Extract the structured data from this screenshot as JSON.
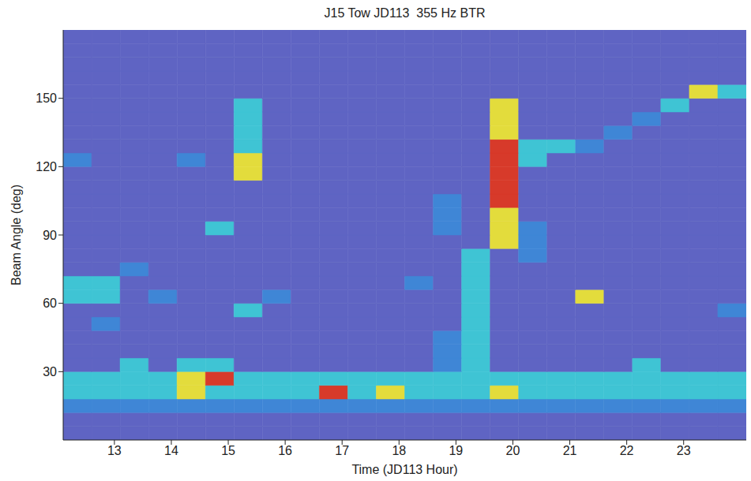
{
  "chart_data": {
    "type": "heatmap",
    "title": "J15 Tow JD113  355 Hz BTR",
    "x_label": "Time (JD113 Hour)",
    "y_label": "Beam Angle (deg)",
    "xlim": [
      12.1,
      24.1
    ],
    "xticks": [
      13,
      14,
      15,
      16,
      17,
      18,
      19,
      20,
      21,
      22,
      23
    ],
    "ylim": [
      0,
      180
    ],
    "yticks": [
      30,
      60,
      90,
      120,
      150
    ],
    "grid": false,
    "colors": [
      "#5f64c3",
      "#3f86d6",
      "#3fc4d4",
      "#e3dc3c",
      "#d73a2a"
    ],
    "x_bins": [
      12.1,
      12.6,
      13.1,
      13.6,
      14.1,
      14.6,
      15.1,
      15.6,
      16.1,
      16.6,
      17.1,
      17.6,
      18.1,
      18.6,
      19.1,
      19.6,
      20.1,
      20.6,
      21.1,
      21.6,
      22.1,
      22.6,
      23.1,
      23.6,
      24.1
    ],
    "y_bins": [
      0,
      6,
      12,
      18,
      24,
      30,
      36,
      42,
      48,
      54,
      60,
      66,
      72,
      78,
      84,
      90,
      96,
      102,
      108,
      114,
      120,
      126,
      132,
      138,
      144,
      150,
      156,
      162,
      168,
      174,
      180
    ],
    "cells": [
      [
        0,
        0,
        0,
        0,
        0,
        0,
        0,
        0,
        0,
        0,
        0,
        0,
        0,
        0,
        0,
        0,
        0,
        0,
        0,
        0,
        0,
        0,
        0,
        0
      ],
      [
        0,
        0,
        0,
        0,
        0,
        0,
        0,
        0,
        0,
        0,
        0,
        0,
        0,
        0,
        0,
        0,
        0,
        0,
        0,
        0,
        0,
        0,
        0,
        0
      ],
      [
        1,
        1,
        1,
        1,
        1,
        1,
        1,
        1,
        1,
        1,
        1,
        1,
        1,
        1,
        1,
        1,
        1,
        1,
        1,
        1,
        1,
        1,
        1,
        1
      ],
      [
        2,
        2,
        2,
        2,
        3,
        2,
        2,
        2,
        2,
        4,
        2,
        3,
        2,
        2,
        2,
        3,
        2,
        2,
        2,
        2,
        2,
        2,
        2,
        2
      ],
      [
        2,
        2,
        2,
        2,
        3,
        4,
        2,
        2,
        2,
        2,
        2,
        2,
        2,
        2,
        2,
        2,
        2,
        2,
        2,
        2,
        2,
        2,
        2,
        2
      ],
      [
        0,
        0,
        2,
        0,
        2,
        2,
        0,
        0,
        0,
        0,
        0,
        0,
        0,
        1,
        2,
        0,
        0,
        0,
        0,
        0,
        2,
        0,
        0,
        0
      ],
      [
        0,
        0,
        0,
        0,
        0,
        0,
        0,
        0,
        0,
        0,
        0,
        0,
        0,
        1,
        2,
        0,
        0,
        0,
        0,
        0,
        0,
        0,
        0,
        0
      ],
      [
        0,
        0,
        0,
        0,
        0,
        0,
        0,
        0,
        0,
        0,
        0,
        0,
        0,
        1,
        2,
        0,
        0,
        0,
        0,
        0,
        0,
        0,
        0,
        0
      ],
      [
        0,
        1,
        0,
        0,
        0,
        0,
        0,
        0,
        0,
        0,
        0,
        0,
        0,
        0,
        2,
        0,
        0,
        0,
        0,
        0,
        0,
        0,
        0,
        0
      ],
      [
        0,
        0,
        0,
        0,
        0,
        0,
        2,
        0,
        0,
        0,
        0,
        0,
        0,
        0,
        2,
        0,
        0,
        0,
        0,
        0,
        0,
        0,
        0,
        1
      ],
      [
        2,
        2,
        0,
        1,
        0,
        0,
        0,
        1,
        0,
        0,
        0,
        0,
        0,
        0,
        2,
        0,
        0,
        0,
        3,
        0,
        0,
        0,
        0,
        0
      ],
      [
        2,
        2,
        0,
        0,
        0,
        0,
        0,
        0,
        0,
        0,
        0,
        0,
        1,
        0,
        2,
        0,
        0,
        0,
        0,
        0,
        0,
        0,
        0,
        0
      ],
      [
        0,
        0,
        1,
        0,
        0,
        0,
        0,
        0,
        0,
        0,
        0,
        0,
        0,
        0,
        2,
        0,
        0,
        0,
        0,
        0,
        0,
        0,
        0,
        0
      ],
      [
        0,
        0,
        0,
        0,
        0,
        0,
        0,
        0,
        0,
        0,
        0,
        0,
        0,
        0,
        2,
        0,
        1,
        0,
        0,
        0,
        0,
        0,
        0,
        0
      ],
      [
        0,
        0,
        0,
        0,
        0,
        0,
        0,
        0,
        0,
        0,
        0,
        0,
        0,
        0,
        0,
        3,
        1,
        0,
        0,
        0,
        0,
        0,
        0,
        0
      ],
      [
        0,
        0,
        0,
        0,
        0,
        2,
        0,
        0,
        0,
        0,
        0,
        0,
        0,
        1,
        0,
        3,
        1,
        0,
        0,
        0,
        0,
        0,
        0,
        0
      ],
      [
        0,
        0,
        0,
        0,
        0,
        0,
        0,
        0,
        0,
        0,
        0,
        0,
        0,
        1,
        0,
        3,
        0,
        0,
        0,
        0,
        0,
        0,
        0,
        0
      ],
      [
        0,
        0,
        0,
        0,
        0,
        0,
        0,
        0,
        0,
        0,
        0,
        0,
        0,
        1,
        0,
        4,
        0,
        0,
        0,
        0,
        0,
        0,
        0,
        0
      ],
      [
        0,
        0,
        0,
        0,
        0,
        0,
        0,
        0,
        0,
        0,
        0,
        0,
        0,
        0,
        0,
        4,
        0,
        0,
        0,
        0,
        0,
        0,
        0,
        0
      ],
      [
        0,
        0,
        0,
        0,
        0,
        0,
        3,
        0,
        0,
        0,
        0,
        0,
        0,
        0,
        0,
        4,
        0,
        0,
        0,
        0,
        0,
        0,
        0,
        0
      ],
      [
        1,
        0,
        0,
        0,
        1,
        0,
        3,
        0,
        0,
        0,
        0,
        0,
        0,
        0,
        0,
        4,
        2,
        0,
        0,
        0,
        0,
        0,
        0,
        0
      ],
      [
        0,
        0,
        0,
        0,
        0,
        0,
        2,
        0,
        0,
        0,
        0,
        0,
        0,
        0,
        0,
        4,
        2,
        2,
        1,
        0,
        0,
        0,
        0,
        0
      ],
      [
        0,
        0,
        0,
        0,
        0,
        0,
        2,
        0,
        0,
        0,
        0,
        0,
        0,
        0,
        0,
        3,
        0,
        0,
        0,
        1,
        0,
        0,
        0,
        0
      ],
      [
        0,
        0,
        0,
        0,
        0,
        0,
        2,
        0,
        0,
        0,
        0,
        0,
        0,
        0,
        0,
        3,
        0,
        0,
        0,
        0,
        1,
        0,
        0,
        0
      ],
      [
        0,
        0,
        0,
        0,
        0,
        0,
        2,
        0,
        0,
        0,
        0,
        0,
        0,
        0,
        0,
        3,
        0,
        0,
        0,
        0,
        0,
        2,
        0,
        0
      ],
      [
        0,
        0,
        0,
        0,
        0,
        0,
        0,
        0,
        0,
        0,
        0,
        0,
        0,
        0,
        0,
        0,
        0,
        0,
        0,
        0,
        0,
        0,
        3,
        2
      ],
      [
        0,
        0,
        0,
        0,
        0,
        0,
        0,
        0,
        0,
        0,
        0,
        0,
        0,
        0,
        0,
        0,
        0,
        0,
        0,
        0,
        0,
        0,
        0,
        0
      ],
      [
        0,
        0,
        0,
        0,
        0,
        0,
        0,
        0,
        0,
        0,
        0,
        0,
        0,
        0,
        0,
        0,
        0,
        0,
        0,
        0,
        0,
        0,
        0,
        0
      ],
      [
        0,
        0,
        0,
        0,
        0,
        0,
        0,
        0,
        0,
        0,
        0,
        0,
        0,
        0,
        0,
        0,
        0,
        0,
        0,
        0,
        0,
        0,
        0,
        0
      ],
      [
        0,
        0,
        0,
        0,
        0,
        0,
        0,
        0,
        0,
        0,
        0,
        0,
        0,
        0,
        0,
        0,
        0,
        0,
        0,
        0,
        0,
        0,
        0,
        0
      ]
    ]
  }
}
